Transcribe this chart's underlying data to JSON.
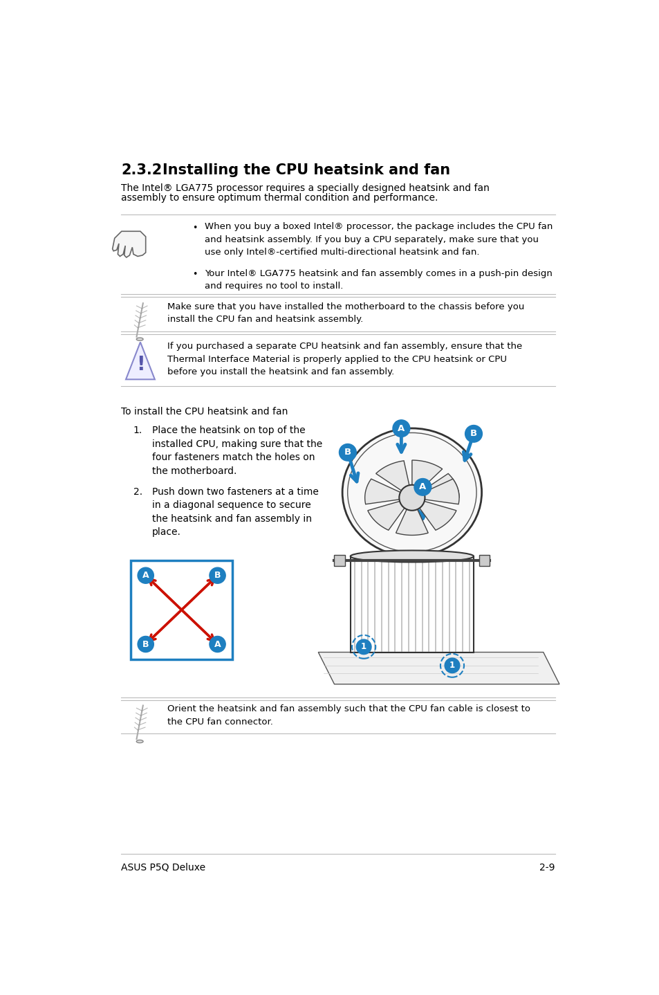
{
  "bg_color": "#ffffff",
  "section_title_num": "2.3.2",
  "section_title_text": "Installing the CPU heatsink and fan",
  "intro_line1": "The Intel® LGA775 processor requires a specially designed heatsink and fan",
  "intro_line2": "assembly to ensure optimum thermal condition and performance.",
  "bullet1": "When you buy a boxed Intel® processor, the package includes the CPU fan\nand heatsink assembly. If you buy a CPU separately, make sure that you\nuse only Intel®-certified multi-directional heatsink and fan.",
  "bullet2": "Your Intel® LGA775 heatsink and fan assembly comes in a push-pin design\nand requires no tool to install.",
  "note1_text": "Make sure that you have installed the motherboard to the chassis before you\ninstall the CPU fan and heatsink assembly.",
  "warning_text": "If you purchased a separate CPU heatsink and fan assembly, ensure that the\nThermal Interface Material is properly applied to the CPU heatsink or CPU\nbefore you install the heatsink and fan assembly.",
  "to_install_text": "To install the CPU heatsink and fan",
  "step1_num": "1.",
  "step1_text": "Place the heatsink on top of the\ninstalled CPU, making sure that the\nfour fasteners match the holes on\nthe motherboard.",
  "step2_num": "2.",
  "step2_text": "Push down two fasteners at a time\nin a diagonal sequence to secure\nthe heatsink and fan assembly in\nplace.",
  "note2_text": "Orient the heatsink and fan assembly such that the CPU fan cable is closest to\nthe CPU fan connector.",
  "footer_left": "ASUS P5Q Deluxe",
  "footer_right": "2-9",
  "accent_color": "#1e7fc0",
  "red_color": "#cc1100",
  "text_color": "#000000",
  "line_color": "#bbbbbb"
}
